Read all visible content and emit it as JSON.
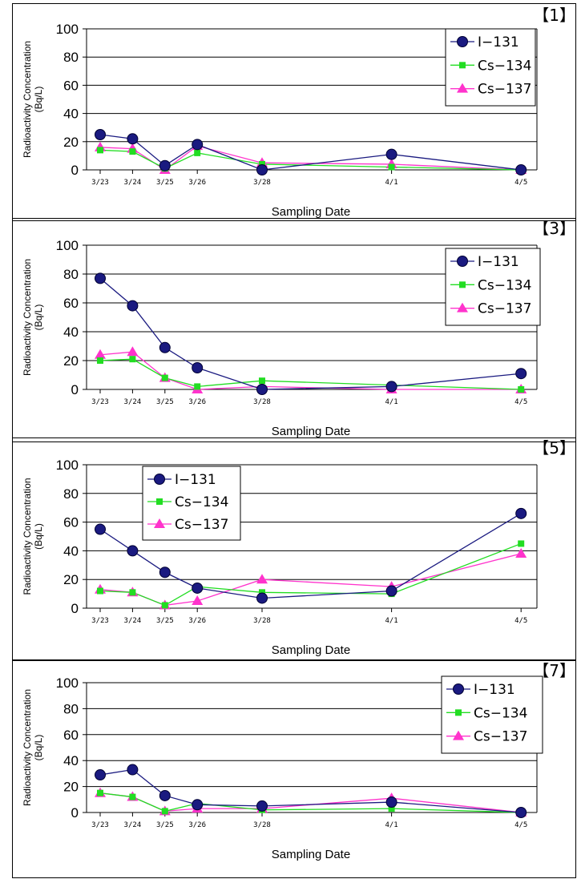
{
  "chart_data": [
    {
      "type": "line",
      "panel_label": "【1】",
      "categories": [
        "3/23",
        "3/24",
        "3/25",
        "3/26",
        "3/28",
        "4/1",
        "4/5"
      ],
      "x_days": [
        0,
        1,
        2,
        3,
        5,
        9,
        13
      ],
      "xlabel": "Sampling Date",
      "ylabel": "Radioactivity Concentration (Bq/L)",
      "ylabel_lines": [
        "Radioactivity Concentration",
        "(Bq/L)"
      ],
      "ylim": [
        0,
        100
      ],
      "yticks": [
        0,
        20,
        40,
        60,
        80,
        100
      ],
      "grid": true,
      "legend_position": "top-right",
      "series": [
        {
          "name": "I-131",
          "label": "I−131",
          "color": "#1a1a80",
          "marker": "circle",
          "values": [
            25,
            22,
            3,
            18,
            0,
            11,
            0
          ]
        },
        {
          "name": "Cs-134",
          "label": "Cs−134",
          "color": "#22dd22",
          "marker": "square",
          "values": [
            14,
            13,
            1,
            12,
            4,
            2,
            0
          ]
        },
        {
          "name": "Cs-137",
          "label": "Cs−137",
          "color": "#ff33cc",
          "marker": "triangle",
          "values": [
            16,
            15,
            0,
            17,
            5,
            4,
            0
          ]
        }
      ]
    },
    {
      "type": "line",
      "panel_label": "【3】",
      "categories": [
        "3/23",
        "3/24",
        "3/25",
        "3/26",
        "3/28",
        "4/1",
        "4/5"
      ],
      "x_days": [
        0,
        1,
        2,
        3,
        5,
        9,
        13
      ],
      "xlabel": "Sampling Date",
      "ylabel": "Radioactivity Concentration (Bq/L)",
      "ylabel_lines": [
        "Radioactivity Concentration",
        "(Bq/L)"
      ],
      "ylim": [
        0,
        100
      ],
      "yticks": [
        0,
        20,
        40,
        60,
        80,
        100
      ],
      "grid": true,
      "legend_position": "top-right",
      "series": [
        {
          "name": "I-131",
          "label": "I−131",
          "color": "#1a1a80",
          "marker": "circle",
          "values": [
            77,
            58,
            29,
            15,
            0,
            2,
            11
          ]
        },
        {
          "name": "Cs-134",
          "label": "Cs−134",
          "color": "#22dd22",
          "marker": "square",
          "values": [
            20,
            21,
            8,
            2,
            6,
            3,
            0
          ]
        },
        {
          "name": "Cs-137",
          "label": "Cs−137",
          "color": "#ff33cc",
          "marker": "triangle",
          "values": [
            24,
            26,
            8,
            0,
            2,
            0,
            0
          ]
        }
      ]
    },
    {
      "type": "line",
      "panel_label": "【5】",
      "categories": [
        "3/23",
        "3/24",
        "3/25",
        "3/26",
        "3/28",
        "4/1",
        "4/5"
      ],
      "x_days": [
        0,
        1,
        2,
        3,
        5,
        9,
        13
      ],
      "xlabel": "Sampling Date",
      "ylabel": "Radioactivity Concentration (Bq/L)",
      "ylabel_lines": [
        "Radioactivity Concentration",
        "(Bq/L)"
      ],
      "ylim": [
        0,
        100
      ],
      "yticks": [
        0,
        20,
        40,
        60,
        80,
        100
      ],
      "grid": true,
      "legend_position": "top-left",
      "series": [
        {
          "name": "I-131",
          "label": "I−131",
          "color": "#1a1a80",
          "marker": "circle",
          "values": [
            55,
            40,
            25,
            14,
            7,
            12,
            66
          ]
        },
        {
          "name": "Cs-134",
          "label": "Cs−134",
          "color": "#22dd22",
          "marker": "square",
          "values": [
            12,
            11,
            2,
            15,
            11,
            10,
            45
          ]
        },
        {
          "name": "Cs-137",
          "label": "Cs−137",
          "color": "#ff33cc",
          "marker": "triangle",
          "values": [
            13,
            11,
            2,
            5,
            20,
            15,
            38
          ]
        }
      ]
    },
    {
      "type": "line",
      "panel_label": "【7】",
      "categories": [
        "3/23",
        "3/24",
        "3/25",
        "3/26",
        "3/28",
        "4/1",
        "4/5"
      ],
      "x_days": [
        0,
        1,
        2,
        3,
        5,
        9,
        13
      ],
      "xlabel": "Sampling Date",
      "ylabel": "Radioactivity Concentration (Bq/L)",
      "ylabel_lines": [
        "Radioactivity Concentration",
        "(Bq/L)"
      ],
      "ylim": [
        0,
        100
      ],
      "yticks": [
        0,
        20,
        40,
        60,
        80,
        100
      ],
      "grid": true,
      "legend_position": "top-right",
      "series": [
        {
          "name": "I-131",
          "label": "I−131",
          "color": "#1a1a80",
          "marker": "circle",
          "values": [
            29,
            33,
            13,
            6,
            5,
            8,
            0
          ]
        },
        {
          "name": "Cs-134",
          "label": "Cs−134",
          "color": "#22dd22",
          "marker": "square",
          "values": [
            15,
            12,
            1,
            7,
            2,
            3,
            0
          ]
        },
        {
          "name": "Cs-137",
          "label": "Cs−137",
          "color": "#ff33cc",
          "marker": "triangle",
          "values": [
            15,
            12,
            1,
            3,
            3,
            11,
            0
          ]
        }
      ]
    }
  ]
}
